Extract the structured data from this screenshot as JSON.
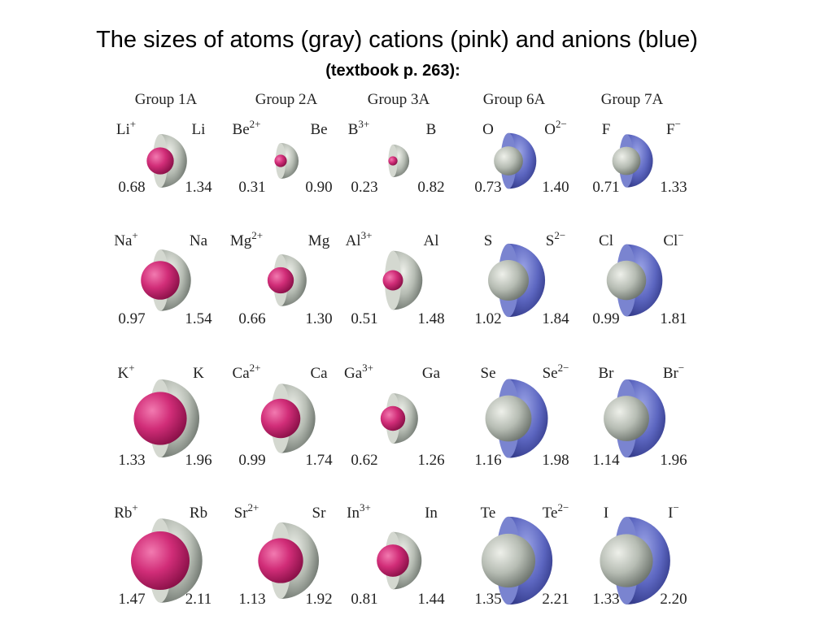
{
  "title": "The sizes of atoms (gray) cations (pink) and anions (blue)",
  "subtitle": "(textbook p. 263):",
  "groups": [
    {
      "name": "Group 1A",
      "rows": [
        {
          "left": {
            "symbol": "Li",
            "charge": "+"
          },
          "right": {
            "symbol": "Li"
          },
          "left_value": "0.68",
          "right_value": "1.34"
        },
        {
          "left": {
            "symbol": "Na",
            "charge": "+"
          },
          "right": {
            "symbol": "Na"
          },
          "left_value": "0.97",
          "right_value": "1.54"
        },
        {
          "left": {
            "symbol": "K",
            "charge": "+"
          },
          "right": {
            "symbol": "K"
          },
          "left_value": "1.33",
          "right_value": "1.96"
        },
        {
          "left": {
            "symbol": "Rb",
            "charge": "+"
          },
          "right": {
            "symbol": "Rb"
          },
          "left_value": "1.47",
          "right_value": "2.11"
        }
      ]
    },
    {
      "name": "Group 2A",
      "rows": [
        {
          "left": {
            "symbol": "Be",
            "charge": "2+"
          },
          "right": {
            "symbol": "Be"
          },
          "left_value": "0.31",
          "right_value": "0.90"
        },
        {
          "left": {
            "symbol": "Mg",
            "charge": "2+"
          },
          "right": {
            "symbol": "Mg"
          },
          "left_value": "0.66",
          "right_value": "1.30"
        },
        {
          "left": {
            "symbol": "Ca",
            "charge": "2+"
          },
          "right": {
            "symbol": "Ca"
          },
          "left_value": "0.99",
          "right_value": "1.74"
        },
        {
          "left": {
            "symbol": "Sr",
            "charge": "2+"
          },
          "right": {
            "symbol": "Sr"
          },
          "left_value": "1.13",
          "right_value": "1.92"
        }
      ]
    },
    {
      "name": "Group 3A",
      "rows": [
        {
          "left": {
            "symbol": "B",
            "charge": "3+"
          },
          "right": {
            "symbol": "B"
          },
          "left_value": "0.23",
          "right_value": "0.82"
        },
        {
          "left": {
            "symbol": "Al",
            "charge": "3+"
          },
          "right": {
            "symbol": "Al"
          },
          "left_value": "0.51",
          "right_value": "1.48"
        },
        {
          "left": {
            "symbol": "Ga",
            "charge": "3+"
          },
          "right": {
            "symbol": "Ga"
          },
          "left_value": "0.62",
          "right_value": "1.26"
        },
        {
          "left": {
            "symbol": "In",
            "charge": "3+"
          },
          "right": {
            "symbol": "In"
          },
          "left_value": "0.81",
          "right_value": "1.44"
        }
      ]
    },
    {
      "name": "Group 6A",
      "rows": [
        {
          "left": {
            "symbol": "O"
          },
          "right": {
            "symbol": "O",
            "charge": "2−"
          },
          "left_value": "0.73",
          "right_value": "1.40"
        },
        {
          "left": {
            "symbol": "S"
          },
          "right": {
            "symbol": "S",
            "charge": "2−"
          },
          "left_value": "1.02",
          "right_value": "1.84"
        },
        {
          "left": {
            "symbol": "Se"
          },
          "right": {
            "symbol": "Se",
            "charge": "2−"
          },
          "left_value": "1.16",
          "right_value": "1.98"
        },
        {
          "left": {
            "symbol": "Te"
          },
          "right": {
            "symbol": "Te",
            "charge": "2−"
          },
          "left_value": "1.35",
          "right_value": "2.21"
        }
      ]
    },
    {
      "name": "Group 7A",
      "rows": [
        {
          "left": {
            "symbol": "F"
          },
          "right": {
            "symbol": "F",
            "charge": "−"
          },
          "left_value": "0.71",
          "right_value": "1.33"
        },
        {
          "left": {
            "symbol": "Cl"
          },
          "right": {
            "symbol": "Cl",
            "charge": "−"
          },
          "left_value": "0.99",
          "right_value": "1.81"
        },
        {
          "left": {
            "symbol": "Br"
          },
          "right": {
            "symbol": "Br",
            "charge": "−"
          },
          "left_value": "1.14",
          "right_value": "1.96"
        },
        {
          "left": {
            "symbol": "I"
          },
          "right": {
            "symbol": "I",
            "charge": "−"
          },
          "left_value": "1.33",
          "right_value": "2.20"
        }
      ]
    }
  ]
}
